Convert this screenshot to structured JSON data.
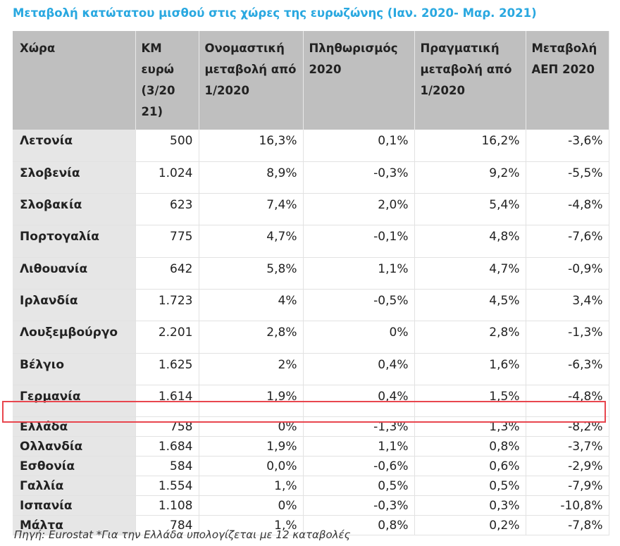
{
  "title": "Μεταβολή κατώτατου μισθού στις χώρες της ευρωζώνης (Ιαν. 2020- Μαρ. 2021)",
  "headers": [
    "Χώρα",
    "ΚΜ ευρώ (3/20 21)",
    "Ονομαστική μεταβολή από 1/2020",
    "Πληθωρισμός 2020",
    "Πραγματική μεταβολή από 1/2020",
    "Μεταβολή ΑΕΠ 2020"
  ],
  "rows": [
    [
      "Λετονία",
      "500",
      "16,3%",
      "0,1%",
      "16,2%",
      "-3,6%"
    ],
    [
      "Σλοβενία",
      "1.024",
      "8,9%",
      "-0,3%",
      "9,2%",
      "-5,5%"
    ],
    [
      "Σλοβακία",
      "623",
      "7,4%",
      "2,0%",
      "5,4%",
      "-4,8%"
    ],
    [
      "Πορτογαλία",
      "775",
      "4,7%",
      "-0,1%",
      "4,8%",
      "-7,6%"
    ],
    [
      "Λιθουανία",
      "642",
      "5,8%",
      "1,1%",
      "4,7%",
      "-0,9%"
    ],
    [
      "Ιρλανδία",
      "1.723",
      "4%",
      "-0,5%",
      "4,5%",
      "3,4%"
    ],
    [
      "Λουξεμβούργο",
      "2.201",
      "2,8%",
      "0%",
      "2,8%",
      "-1,3%"
    ],
    [
      "Βέλγιο",
      "1.625",
      "2%",
      "0,4%",
      "1,6%",
      "-6,3%"
    ],
    [
      "Γερμανία",
      "1.614",
      "1,9%",
      "0,4%",
      "1,5%",
      "-4,8%"
    ],
    [
      "Ελλάδα",
      "758",
      "0%",
      "-1,3%",
      "1,3%",
      "-8,2%"
    ],
    [
      "Ολλανδία",
      "1.684",
      "1,9%",
      "1,1%",
      "0,8%",
      "-3,7%"
    ],
    [
      "Εσθονία",
      "584",
      "0,0%",
      "-0,6%",
      "0,6%",
      "-2,9%"
    ],
    [
      "Γαλλία",
      "1.554",
      "1,%",
      "0,5%",
      "0,5%",
      "-7,9%"
    ],
    [
      "Ισπανία",
      "1.108",
      "0%",
      "-0,3%",
      "0,3%",
      "-10,8%"
    ],
    [
      "Μάλτα",
      "784",
      "1,%",
      "0,8%",
      "0,2%",
      "-7,8%"
    ]
  ],
  "highlighted_country": "Ελλάδα",
  "source": "Πηγή: Eurostat *Για την Ελλάδα υπολογίζεται με 12 καταβολές",
  "colors": {
    "title": "#29a8e0",
    "header_bg": "#bfbfbf",
    "country_bg": "#e6e6e6",
    "highlight_border": "#e8464e"
  }
}
